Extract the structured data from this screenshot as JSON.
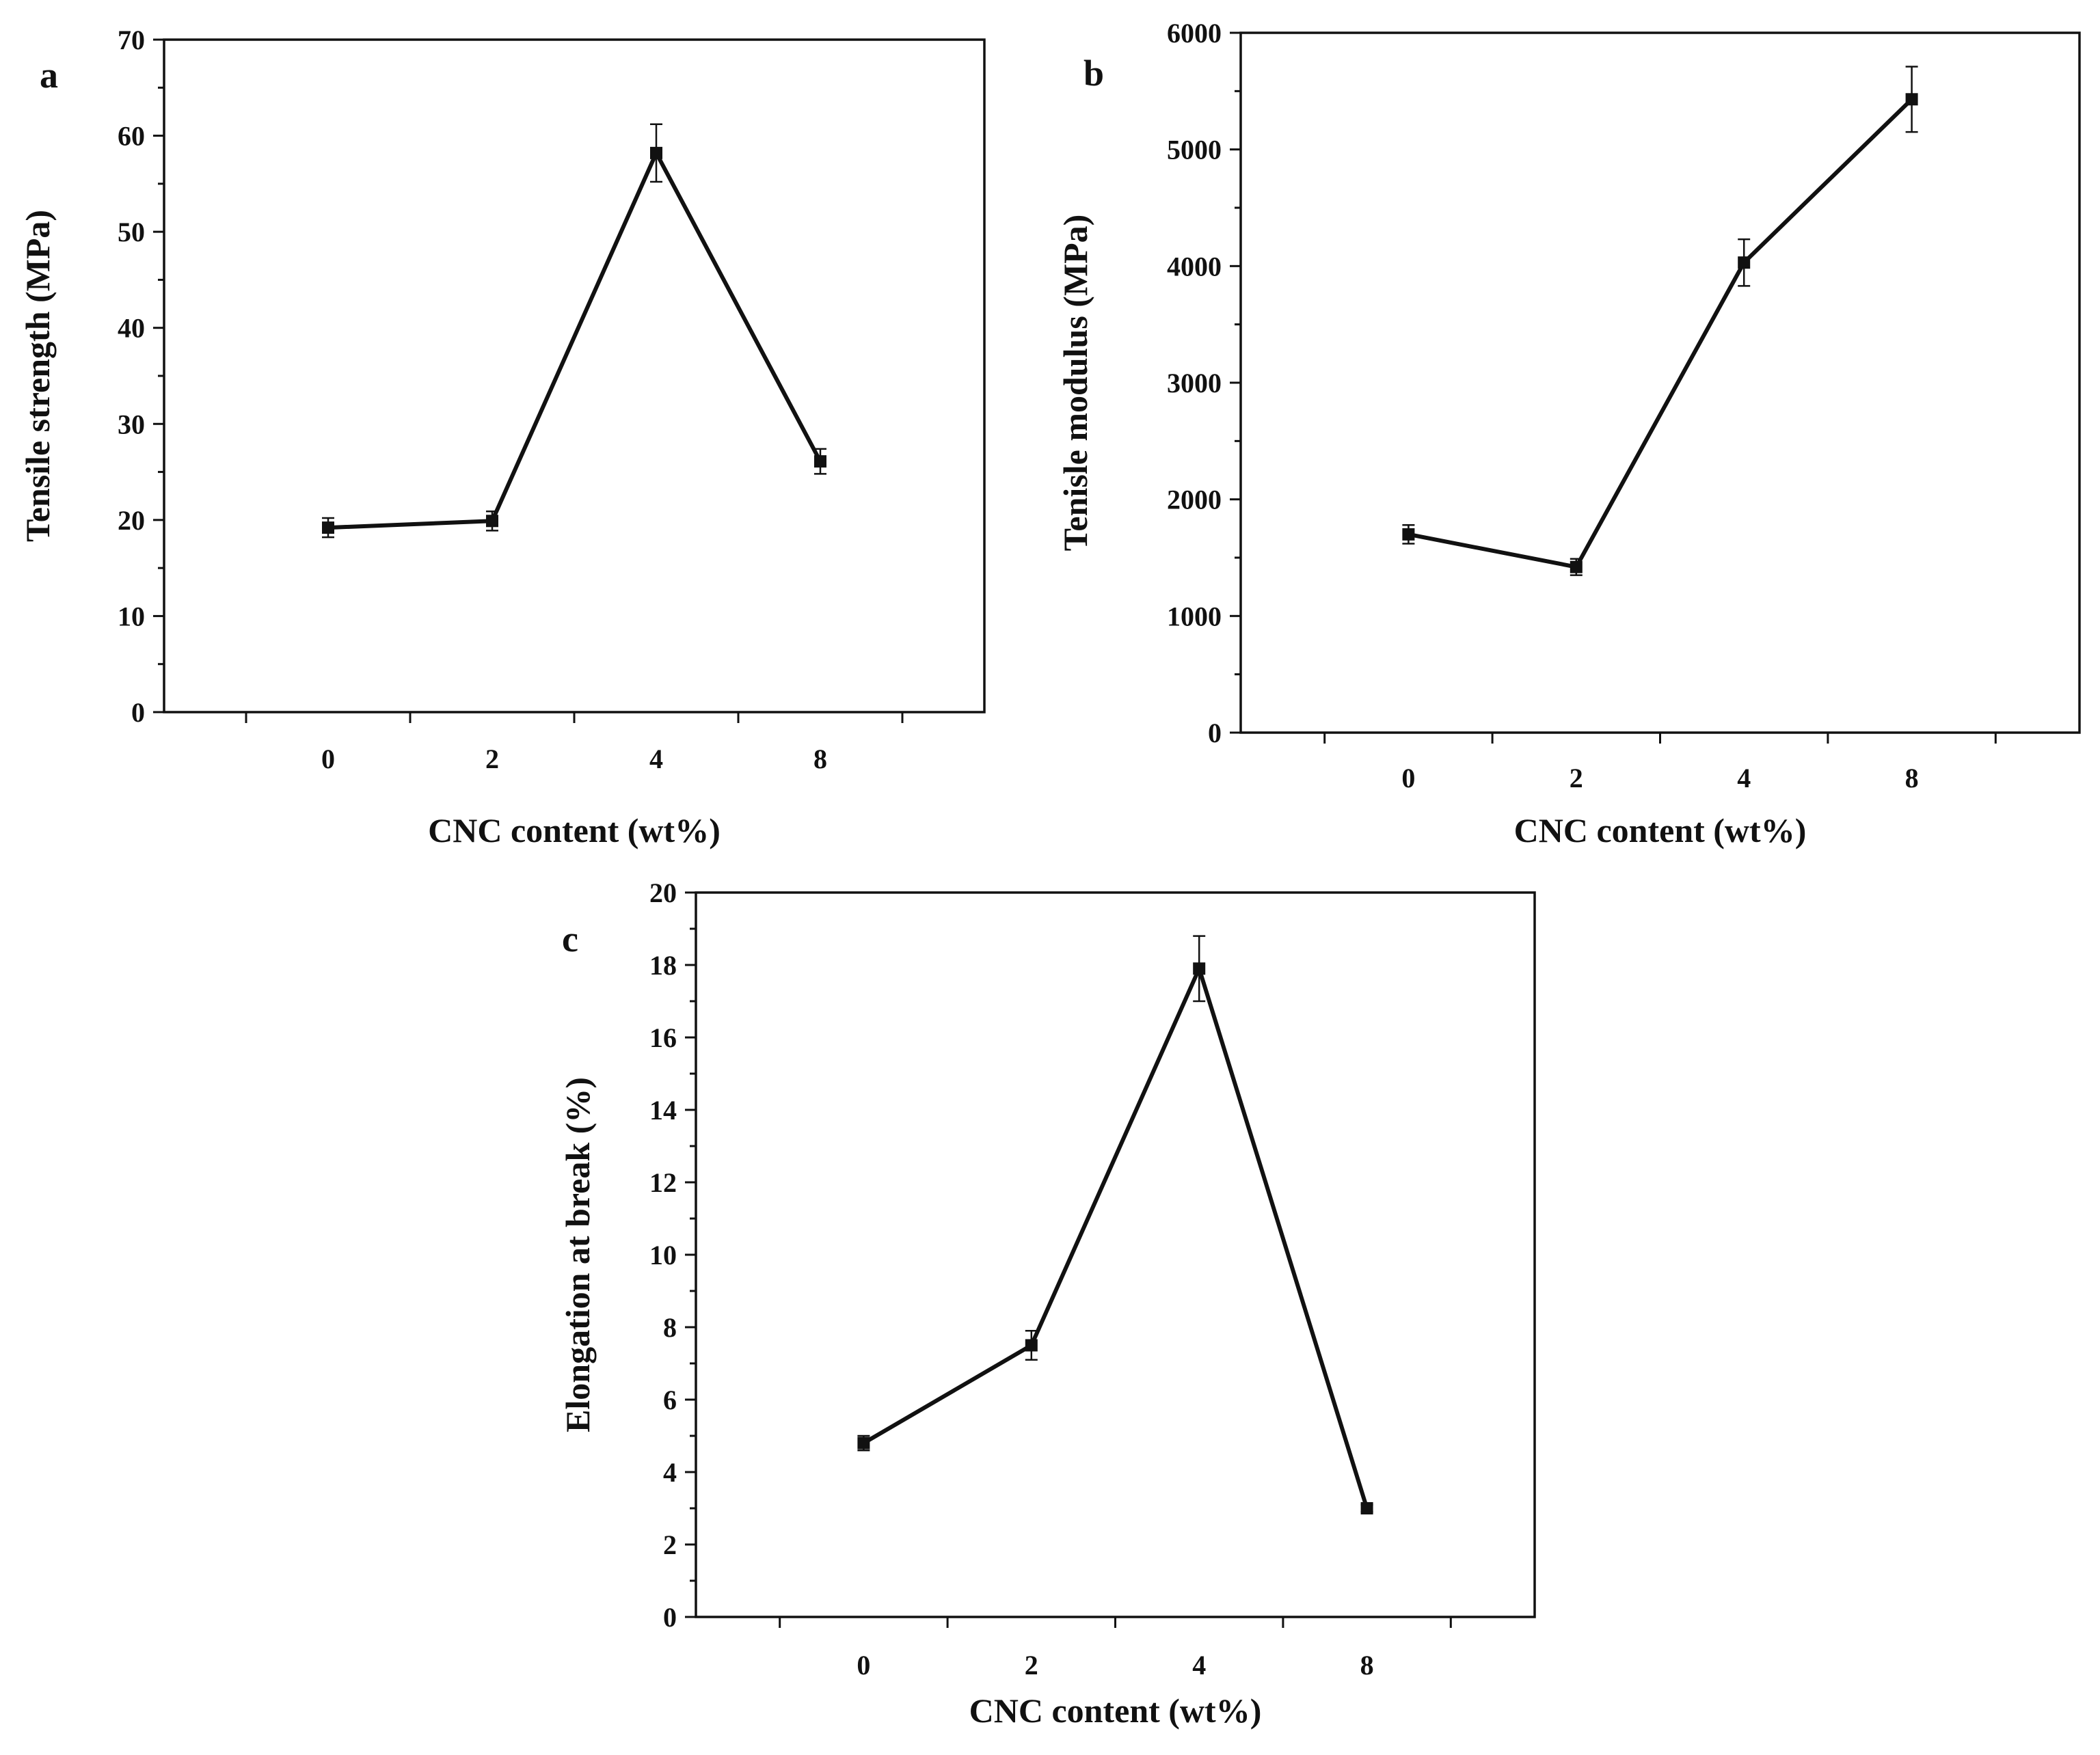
{
  "colors": {
    "line": "#111111",
    "marker": "#111111",
    "background": "#ffffff"
  },
  "chart_data": [
    {
      "panel": "a",
      "type": "line",
      "categories": [
        "0",
        "2",
        "4",
        "8"
      ],
      "values": [
        19.2,
        19.9,
        58.2,
        26.1
      ],
      "errors": [
        1.0,
        1.0,
        3.0,
        1.3
      ],
      "title": "",
      "xlabel": "CNC content (wt%)",
      "ylabel": "Tensile strength (MPa)",
      "ylim": [
        0,
        70
      ],
      "yticks": [
        "0",
        "10",
        "20",
        "30",
        "40",
        "50",
        "60",
        "70"
      ],
      "grid": false,
      "marker": "square"
    },
    {
      "panel": "b",
      "type": "line",
      "categories": [
        "0",
        "2",
        "4",
        "8"
      ],
      "values": [
        1700,
        1420,
        4030,
        5430
      ],
      "errors": [
        80,
        70,
        200,
        280
      ],
      "title": "",
      "xlabel": "CNC content (wt%)",
      "ylabel": "Tenisle modulus (MPa)",
      "ylim": [
        0,
        6000
      ],
      "yticks": [
        "0",
        "1000",
        "2000",
        "3000",
        "4000",
        "5000",
        "6000"
      ],
      "grid": false,
      "marker": "square"
    },
    {
      "panel": "c",
      "type": "line",
      "categories": [
        "0",
        "2",
        "4",
        "8"
      ],
      "values": [
        4.8,
        7.5,
        17.9,
        3.0
      ],
      "errors": [
        0.2,
        0.4,
        0.9,
        0.1
      ],
      "title": "",
      "xlabel": "CNC content (wt%)",
      "ylabel": "Elongation at break (%)",
      "ylim": [
        0,
        20
      ],
      "yticks": [
        "0",
        "2",
        "4",
        "6",
        "8",
        "10",
        "12",
        "14",
        "16",
        "18",
        "20"
      ],
      "grid": false,
      "marker": "square"
    }
  ]
}
